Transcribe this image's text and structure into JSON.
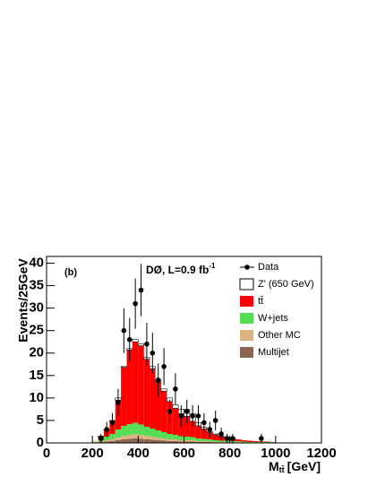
{
  "chart_data": {
    "type": "stacked_histogram",
    "panel_label": "(b)",
    "annotation": {
      "text": "DØ,  L=0.9 fb",
      "sup": "-1"
    },
    "y_label": "Events/25GeV",
    "x_label": {
      "main": "M",
      "sub": "tt̄",
      "unit": "[GeV]"
    },
    "xlim": [
      0,
      1200
    ],
    "xticks": [
      0,
      200,
      400,
      600,
      800,
      1000,
      1200
    ],
    "ylim": [
      0,
      41.5
    ],
    "yticks": [
      0,
      5,
      10,
      15,
      20,
      25,
      30,
      35,
      40
    ],
    "bins": [
      200,
      225,
      250,
      275,
      300,
      325,
      350,
      375,
      400,
      425,
      450,
      475,
      500,
      525,
      550,
      575,
      600,
      625,
      650,
      675,
      700,
      725,
      750,
      775,
      800,
      825,
      850,
      875,
      900,
      925,
      950,
      975,
      1000
    ],
    "series": [
      {
        "name": "Multijet",
        "color": "#8b6552",
        "values": [
          0.1,
          0.2,
          0.3,
          0.4,
          0.6,
          0.8,
          0.9,
          1.0,
          0.9,
          0.8,
          0.7,
          0.6,
          0.5,
          0.4,
          0.4,
          0.3,
          0.3,
          0.3,
          0.2,
          0.2,
          0.2,
          0.1,
          0.1,
          0.1,
          0.1,
          0.1,
          0.05,
          0.05,
          0.05,
          0.05,
          0.05,
          0.05
        ]
      },
      {
        "name": "Other MC",
        "color": "#dcb482",
        "values": [
          0.05,
          0.1,
          0.3,
          0.4,
          0.6,
          0.8,
          0.9,
          1.0,
          0.9,
          0.8,
          0.7,
          0.6,
          0.5,
          0.4,
          0.4,
          0.3,
          0.3,
          0.3,
          0.2,
          0.2,
          0.2,
          0.1,
          0.1,
          0.1,
          0.1,
          0.1,
          0.05,
          0.05,
          0.05,
          0.05,
          0.05,
          0.05
        ]
      },
      {
        "name": "W+jets",
        "color": "#55dd55",
        "values": [
          0.1,
          0.4,
          0.8,
          1.2,
          1.8,
          2.2,
          2.4,
          2.5,
          2.3,
          2.0,
          1.8,
          1.6,
          1.4,
          1.2,
          1.0,
          0.9,
          0.8,
          0.7,
          0.6,
          0.5,
          0.4,
          0.4,
          0.3,
          0.3,
          0.2,
          0.2,
          0.2,
          0.1,
          0.1,
          0.1,
          0.1,
          0.05
        ]
      },
      {
        "name": "tt̄",
        "color": "#ff0000",
        "values": [
          0.05,
          0.7,
          1.5,
          2.8,
          6.5,
          13,
          16.5,
          18,
          17.5,
          15,
          13.3,
          10.7,
          9.1,
          7.2,
          5.9,
          5.0,
          4.5,
          3.5,
          2.8,
          2.2,
          1.5,
          1.2,
          0.9,
          0.6,
          0.5,
          0.4,
          0.3,
          0.3,
          0.2,
          0.15,
          0.1,
          0.05
        ]
      },
      {
        "name": "Z' (650 GeV)",
        "color": "#ffffff",
        "values": [
          0,
          0.1,
          0.1,
          0.2,
          0.5,
          0.2,
          0.3,
          0.5,
          0.4,
          0.4,
          0.5,
          0.5,
          0.5,
          0.8,
          0.8,
          1.0,
          1.6,
          1.7,
          0.7,
          0.4,
          0.2,
          0.2,
          0.1,
          0.1,
          0.1,
          0,
          0,
          0,
          0,
          0,
          0,
          0
        ]
      }
    ],
    "data": {
      "name": "Data",
      "color": "#000000",
      "x": [
        237.5,
        262.5,
        287.5,
        312.5,
        337.5,
        362.5,
        387.5,
        412.5,
        437.5,
        462.5,
        487.5,
        512.5,
        537.5,
        562.5,
        587.5,
        612.5,
        637.5,
        662.5,
        687.5,
        712.5,
        737.5,
        762.5,
        787.5,
        812.5,
        937.5
      ],
      "values": [
        1,
        3,
        4.5,
        9,
        25,
        23,
        31,
        34,
        22,
        20,
        14,
        17,
        7,
        12,
        6,
        7,
        6,
        6,
        4.5,
        3,
        5,
        2,
        1,
        1,
        1
      ],
      "errors": [
        1,
        1.7,
        2.1,
        3,
        5,
        4.8,
        5.6,
        5.8,
        4.7,
        4.5,
        3.7,
        4.1,
        2.6,
        3.5,
        2.4,
        2.6,
        2.4,
        2.4,
        2.1,
        1.7,
        2.2,
        1.4,
        1,
        1,
        1
      ]
    }
  }
}
